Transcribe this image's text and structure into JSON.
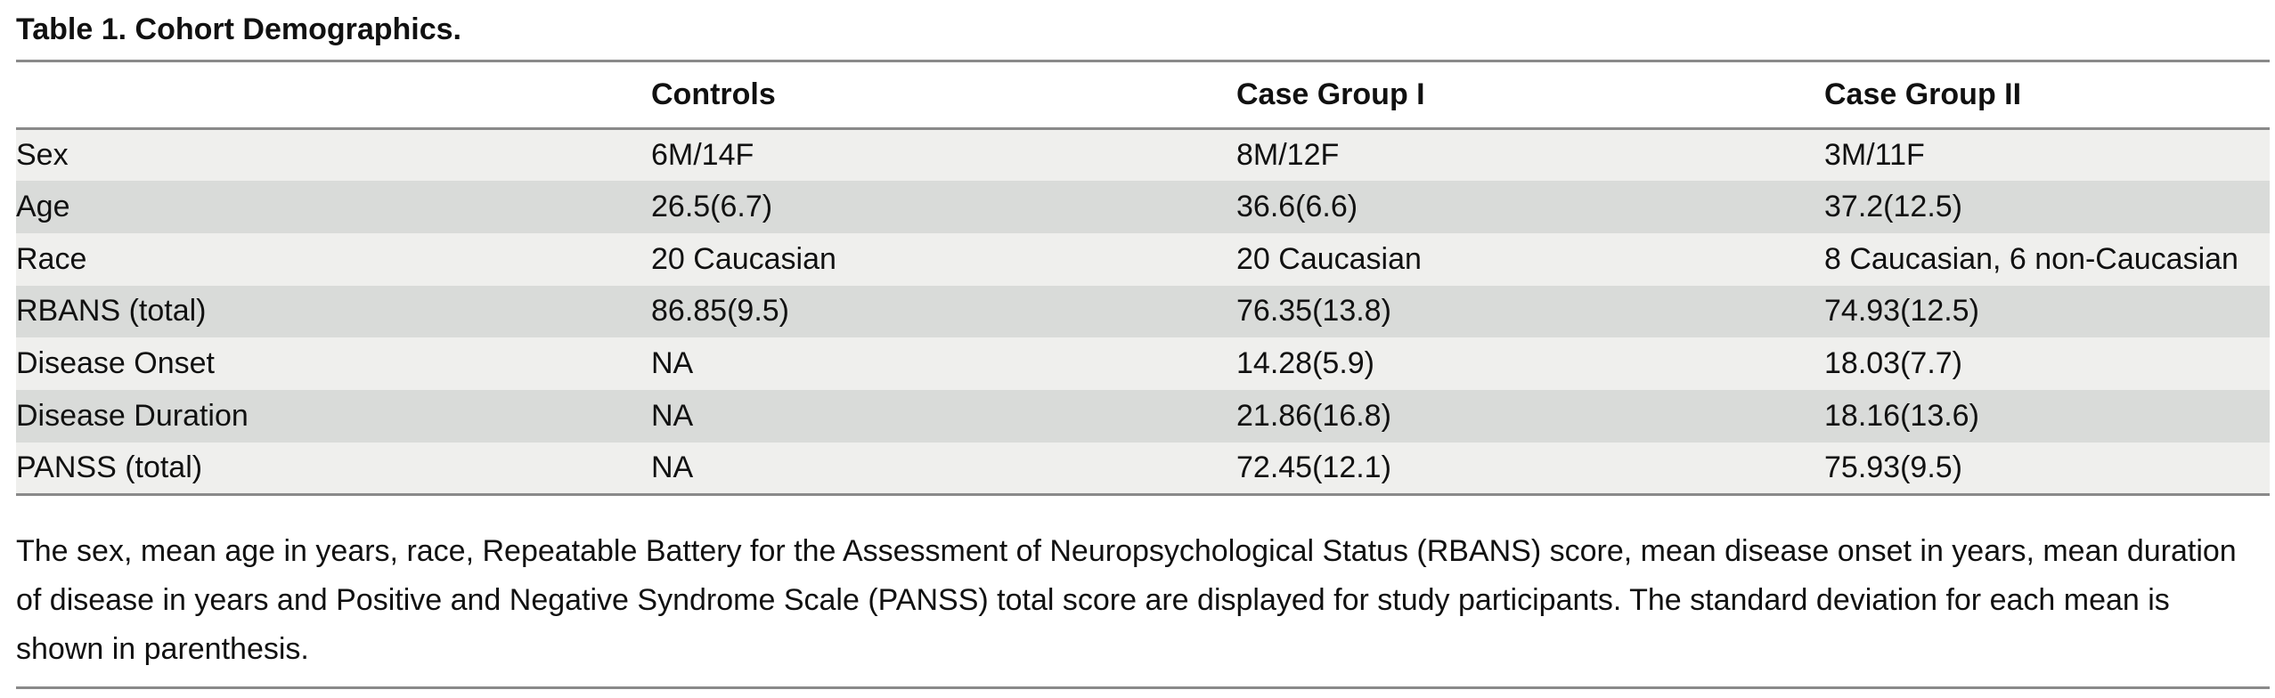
{
  "title": "Table 1.  Cohort Demographics.",
  "table": {
    "headers": [
      "",
      "Controls",
      "Case Group I",
      "Case Group II"
    ],
    "rows": [
      [
        "Sex",
        "6M/14F",
        "8M/12F",
        "3M/11F"
      ],
      [
        "Age",
        "26.5(6.7)",
        "36.6(6.6)",
        "37.2(12.5)"
      ],
      [
        "Race",
        "20 Caucasian",
        "20 Caucasian",
        "8 Caucasian, 6 non-Caucasian"
      ],
      [
        "RBANS (total)",
        "86.85(9.5)",
        "76.35(13.8)",
        "74.93(12.5)"
      ],
      [
        "Disease Onset",
        "NA",
        "14.28(5.9)",
        "18.03(7.7)"
      ],
      [
        "Disease Duration",
        "NA",
        "21.86(16.8)",
        "18.16(13.6)"
      ],
      [
        "PANSS (total)",
        "NA",
        "72.45(12.1)",
        "75.93(9.5)"
      ]
    ]
  },
  "caption": "The sex, mean age in years, race, Repeatable Battery for the Assessment of Neuropsychological Status (RBANS) score, mean disease onset in years, mean duration of disease in years and Positive and Negative Syndrome Scale (PANSS) total score are displayed for study participants. The standard deviation for each mean is shown in parenthesis.",
  "colors": {
    "row_light": "#efefed",
    "row_dark": "#d9dbd9",
    "rule": "#8a8a8a",
    "text": "#111111"
  }
}
